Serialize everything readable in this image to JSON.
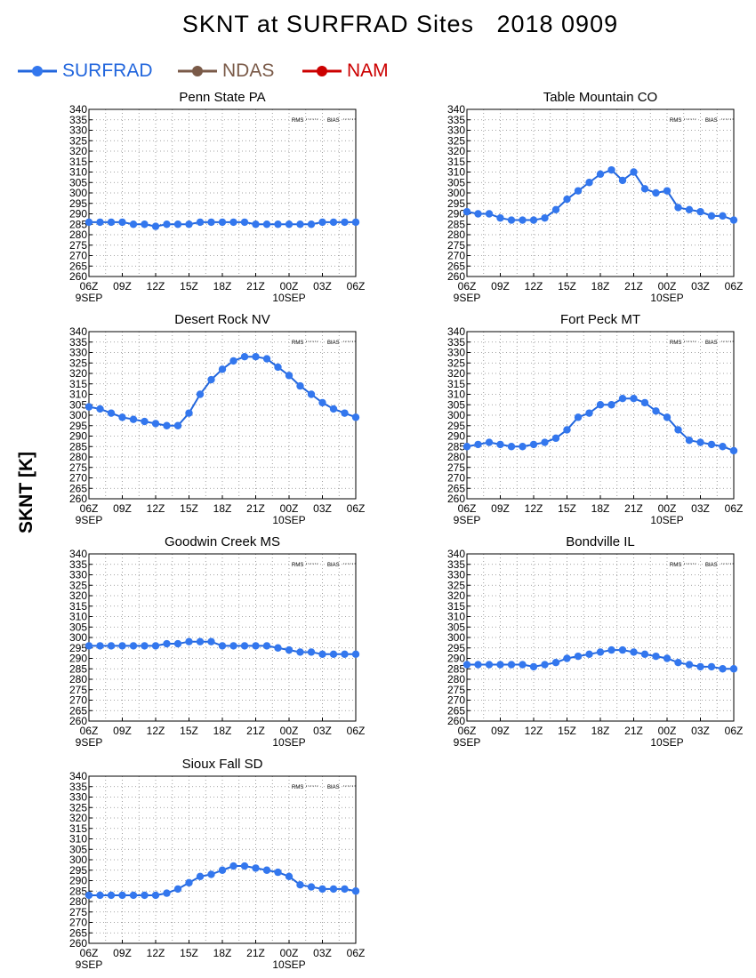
{
  "page": {
    "title": "SKNT at SURFRAD Sites   2018 0909",
    "y_axis_title": "SKNT [K]"
  },
  "legend": [
    {
      "label": "SURFRAD",
      "color": "#2266dd",
      "marker_color": "#3377ee"
    },
    {
      "label": "NDAS",
      "color": "#7a5a48",
      "marker_color": "#7a5a48"
    },
    {
      "label": "NAM",
      "color": "#cc0000",
      "marker_color": "#cc0000"
    }
  ],
  "chart_data": [
    {
      "type": "line",
      "title": "Penn State PA",
      "x_tick_labels": [
        "06Z",
        "09Z",
        "12Z",
        "15Z",
        "18Z",
        "21Z",
        "00Z",
        "03Z",
        "06Z"
      ],
      "x_date_labels": [
        {
          "label": "9SEP",
          "at": "06Z"
        },
        {
          "label": "10SEP",
          "at": "00Z"
        }
      ],
      "ylim": [
        260,
        340
      ],
      "y_ticks": [
        260,
        265,
        270,
        275,
        280,
        285,
        290,
        295,
        300,
        305,
        310,
        315,
        320,
        325,
        330,
        335,
        340
      ],
      "grid": true,
      "stats_labels": [
        "RMS",
        "BIAS"
      ],
      "series": [
        {
          "name": "SURFRAD",
          "hours_from_06Z": [
            0,
            1,
            2,
            3,
            4,
            5,
            6,
            7,
            8,
            9,
            10,
            11,
            12,
            13,
            14,
            15,
            16,
            17,
            18,
            19,
            20,
            21,
            22,
            23,
            24
          ],
          "values": [
            286,
            286,
            286,
            286,
            285,
            285,
            284,
            285,
            285,
            285,
            286,
            286,
            286,
            286,
            286,
            285,
            285,
            285,
            285,
            285,
            285,
            286,
            286,
            286,
            286
          ]
        }
      ]
    },
    {
      "type": "line",
      "title": "Table Mountain CO",
      "x_tick_labels": [
        "06Z",
        "09Z",
        "12Z",
        "15Z",
        "18Z",
        "21Z",
        "00Z",
        "03Z",
        "06Z"
      ],
      "x_date_labels": [
        {
          "label": "9SEP",
          "at": "06Z"
        },
        {
          "label": "10SEP",
          "at": "00Z"
        }
      ],
      "ylim": [
        260,
        340
      ],
      "y_ticks": [
        260,
        265,
        270,
        275,
        280,
        285,
        290,
        295,
        300,
        305,
        310,
        315,
        320,
        325,
        330,
        335,
        340
      ],
      "grid": true,
      "stats_labels": [
        "RMS",
        "BIAS"
      ],
      "series": [
        {
          "name": "SURFRAD",
          "hours_from_06Z": [
            0,
            1,
            2,
            3,
            4,
            5,
            6,
            7,
            8,
            9,
            10,
            11,
            12,
            13,
            14,
            15,
            16,
            17,
            18,
            19,
            20,
            21,
            22,
            23,
            24
          ],
          "values": [
            291,
            290,
            290,
            288,
            287,
            287,
            287,
            288,
            292,
            297,
            301,
            305,
            309,
            311,
            306,
            310,
            302,
            300,
            301,
            293,
            292,
            291,
            289,
            289,
            287
          ]
        }
      ]
    },
    {
      "type": "line",
      "title": "Desert Rock NV",
      "x_tick_labels": [
        "06Z",
        "09Z",
        "12Z",
        "15Z",
        "18Z",
        "21Z",
        "00Z",
        "03Z",
        "06Z"
      ],
      "x_date_labels": [
        {
          "label": "9SEP",
          "at": "06Z"
        },
        {
          "label": "10SEP",
          "at": "00Z"
        }
      ],
      "ylim": [
        260,
        340
      ],
      "y_ticks": [
        260,
        265,
        270,
        275,
        280,
        285,
        290,
        295,
        300,
        305,
        310,
        315,
        320,
        325,
        330,
        335,
        340
      ],
      "grid": true,
      "stats_labels": [
        "RMS",
        "BIAS"
      ],
      "series": [
        {
          "name": "SURFRAD",
          "hours_from_06Z": [
            0,
            1,
            2,
            3,
            4,
            5,
            6,
            7,
            8,
            9,
            10,
            11,
            12,
            13,
            14,
            15,
            16,
            17,
            18,
            19,
            20,
            21,
            22,
            23,
            24
          ],
          "values": [
            304,
            303,
            301,
            299,
            298,
            297,
            296,
            295,
            295,
            301,
            310,
            317,
            322,
            326,
            328,
            328,
            327,
            323,
            319,
            314,
            310,
            306,
            303,
            301,
            299
          ]
        }
      ]
    },
    {
      "type": "line",
      "title": "Fort Peck MT",
      "x_tick_labels": [
        "06Z",
        "09Z",
        "12Z",
        "15Z",
        "18Z",
        "21Z",
        "00Z",
        "03Z",
        "06Z"
      ],
      "x_date_labels": [
        {
          "label": "9SEP",
          "at": "06Z"
        },
        {
          "label": "10SEP",
          "at": "00Z"
        }
      ],
      "ylim": [
        260,
        340
      ],
      "y_ticks": [
        260,
        265,
        270,
        275,
        280,
        285,
        290,
        295,
        300,
        305,
        310,
        315,
        320,
        325,
        330,
        335,
        340
      ],
      "grid": true,
      "stats_labels": [
        "RMS",
        "BIAS"
      ],
      "series": [
        {
          "name": "SURFRAD",
          "hours_from_06Z": [
            0,
            1,
            2,
            3,
            4,
            5,
            6,
            7,
            8,
            9,
            10,
            11,
            12,
            13,
            14,
            15,
            16,
            17,
            18,
            19,
            20,
            21,
            22,
            23,
            24
          ],
          "values": [
            285,
            286,
            287,
            286,
            285,
            285,
            286,
            287,
            289,
            293,
            299,
            301,
            305,
            305,
            308,
            308,
            306,
            302,
            299,
            293,
            288,
            287,
            286,
            285,
            283
          ]
        }
      ]
    },
    {
      "type": "line",
      "title": "Goodwin Creek MS",
      "x_tick_labels": [
        "06Z",
        "09Z",
        "12Z",
        "15Z",
        "18Z",
        "21Z",
        "00Z",
        "03Z",
        "06Z"
      ],
      "x_date_labels": [
        {
          "label": "9SEP",
          "at": "06Z"
        },
        {
          "label": "10SEP",
          "at": "00Z"
        }
      ],
      "ylim": [
        260,
        340
      ],
      "y_ticks": [
        260,
        265,
        270,
        275,
        280,
        285,
        290,
        295,
        300,
        305,
        310,
        315,
        320,
        325,
        330,
        335,
        340
      ],
      "grid": true,
      "stats_labels": [
        "RMS",
        "BIAS"
      ],
      "series": [
        {
          "name": "SURFRAD",
          "hours_from_06Z": [
            0,
            1,
            2,
            3,
            4,
            5,
            6,
            7,
            8,
            9,
            10,
            11,
            12,
            13,
            14,
            15,
            16,
            17,
            18,
            19,
            20,
            21,
            22,
            23,
            24
          ],
          "values": [
            296,
            296,
            296,
            296,
            296,
            296,
            296,
            297,
            297,
            298,
            298,
            298,
            296,
            296,
            296,
            296,
            296,
            295,
            294,
            293,
            293,
            292,
            292,
            292,
            292
          ]
        }
      ]
    },
    {
      "type": "line",
      "title": "Bondville IL",
      "x_tick_labels": [
        "06Z",
        "09Z",
        "12Z",
        "15Z",
        "18Z",
        "21Z",
        "00Z",
        "03Z",
        "06Z"
      ],
      "x_date_labels": [
        {
          "label": "9SEP",
          "at": "06Z"
        },
        {
          "label": "10SEP",
          "at": "00Z"
        }
      ],
      "ylim": [
        260,
        340
      ],
      "y_ticks": [
        260,
        265,
        270,
        275,
        280,
        285,
        290,
        295,
        300,
        305,
        310,
        315,
        320,
        325,
        330,
        335,
        340
      ],
      "grid": true,
      "stats_labels": [
        "RMS",
        "BIAS"
      ],
      "series": [
        {
          "name": "SURFRAD",
          "hours_from_06Z": [
            0,
            1,
            2,
            3,
            4,
            5,
            6,
            7,
            8,
            9,
            10,
            11,
            12,
            13,
            14,
            15,
            16,
            17,
            18,
            19,
            20,
            21,
            22,
            23,
            24
          ],
          "values": [
            287,
            287,
            287,
            287,
            287,
            287,
            286,
            287,
            288,
            290,
            291,
            292,
            293,
            294,
            294,
            293,
            292,
            291,
            290,
            288,
            287,
            286,
            286,
            285,
            285
          ]
        }
      ]
    },
    {
      "type": "line",
      "title": "Sioux Fall SD",
      "x_tick_labels": [
        "06Z",
        "09Z",
        "12Z",
        "15Z",
        "18Z",
        "21Z",
        "00Z",
        "03Z",
        "06Z"
      ],
      "x_date_labels": [
        {
          "label": "9SEP",
          "at": "06Z"
        },
        {
          "label": "10SEP",
          "at": "00Z"
        }
      ],
      "ylim": [
        260,
        340
      ],
      "y_ticks": [
        260,
        265,
        270,
        275,
        280,
        285,
        290,
        295,
        300,
        305,
        310,
        315,
        320,
        325,
        330,
        335,
        340
      ],
      "grid": true,
      "stats_labels": [
        "RMS",
        "BIAS"
      ],
      "series": [
        {
          "name": "SURFRAD",
          "hours_from_06Z": [
            0,
            1,
            2,
            3,
            4,
            5,
            6,
            7,
            8,
            9,
            10,
            11,
            12,
            13,
            14,
            15,
            16,
            17,
            18,
            19,
            20,
            21,
            22,
            23,
            24
          ],
          "values": [
            283,
            283,
            283,
            283,
            283,
            283,
            283,
            284,
            286,
            289,
            292,
            293,
            295,
            297,
            297,
            296,
            295,
            294,
            292,
            288,
            287,
            286,
            286,
            286,
            285
          ]
        }
      ]
    }
  ]
}
